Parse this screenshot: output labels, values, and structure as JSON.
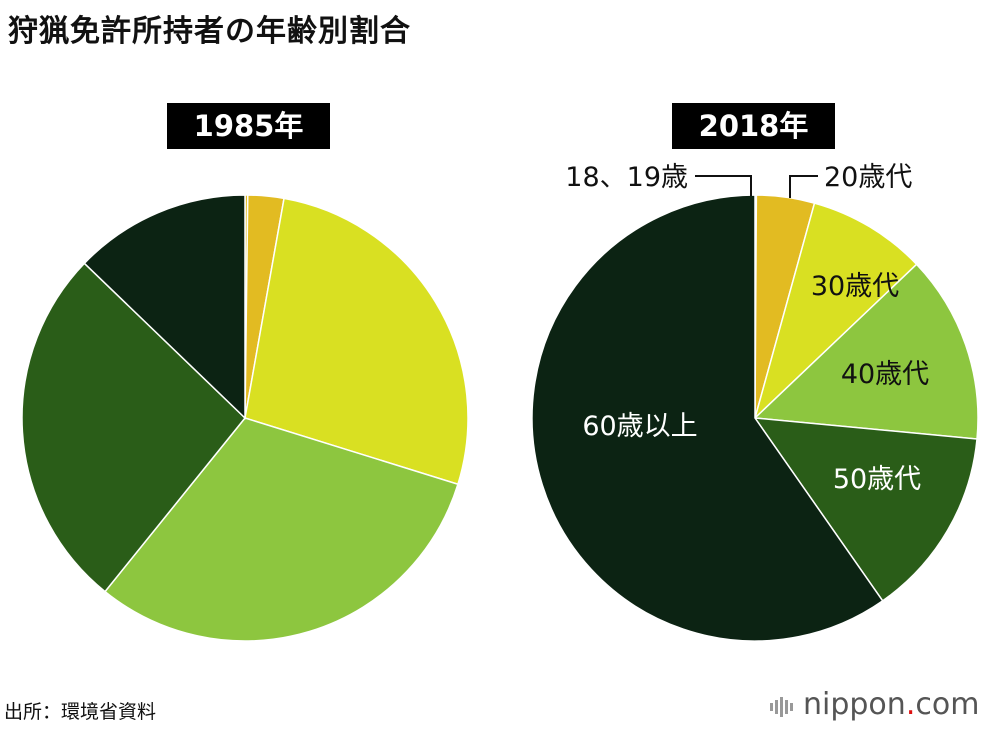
{
  "title": "狩猟免許所持者の年齢別割合",
  "source": "出所：環境省資料",
  "brand": {
    "name": "nippon",
    "dot": ".",
    "tld": "com"
  },
  "colors": {
    "age_18_19": "#e2bb22",
    "age_20s": "#e2bb22",
    "age_30s": "#d9e022",
    "age_40s": "#8dc63f",
    "age_50s": "#2a5d18",
    "age_60plus": "#0c2313"
  },
  "chart_data": [
    {
      "type": "pie",
      "title": "1985年",
      "categories": [
        "18、19歳",
        "20歳代",
        "30歳代",
        "40歳代",
        "50歳代",
        "60歳以上"
      ],
      "values": [
        0.2,
        2.6,
        27.0,
        31.0,
        26.4,
        12.8
      ],
      "unit": "%",
      "labels_shown": false
    },
    {
      "type": "pie",
      "title": "2018年",
      "categories": [
        "18、19歳",
        "20歳代",
        "30歳代",
        "40歳代",
        "50歳代",
        "60歳以上"
      ],
      "values": [
        0.1,
        4.2,
        8.6,
        13.6,
        13.8,
        59.7
      ],
      "unit": "%",
      "labels_shown": true
    }
  ]
}
